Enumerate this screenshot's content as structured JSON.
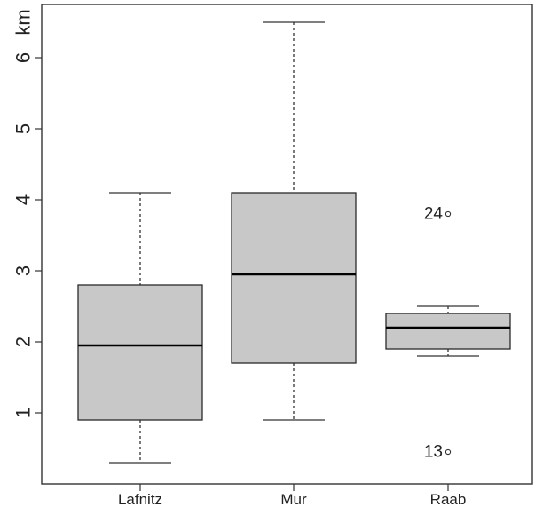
{
  "chart_data": {
    "type": "boxplot",
    "title": "",
    "xlabel": "",
    "ylabel": "km",
    "ylim": [
      0,
      6.75
    ],
    "yticks": [
      1,
      2,
      3,
      4,
      5,
      6
    ],
    "grid": false,
    "colors": {
      "box_fill": "#c8c8c8",
      "box_stroke": "#2a2a2a",
      "median": "#000000",
      "axis": "#333333"
    },
    "categories": [
      "Lafnitz",
      "Mur",
      "Raab"
    ],
    "boxes": [
      {
        "name": "Lafnitz",
        "whisker_low": 0.3,
        "q1": 0.9,
        "median": 1.95,
        "q3": 2.8,
        "whisker_high": 4.1,
        "outliers": []
      },
      {
        "name": "Mur",
        "whisker_low": 0.9,
        "q1": 1.7,
        "median": 2.95,
        "q3": 4.1,
        "whisker_high": 6.5,
        "outliers": []
      },
      {
        "name": "Raab",
        "whisker_low": 1.8,
        "q1": 1.9,
        "median": 2.2,
        "q3": 2.4,
        "whisker_high": 2.5,
        "outliers": [
          {
            "value": 3.8,
            "label": "24"
          },
          {
            "value": 0.45,
            "label": "13"
          }
        ]
      }
    ]
  }
}
